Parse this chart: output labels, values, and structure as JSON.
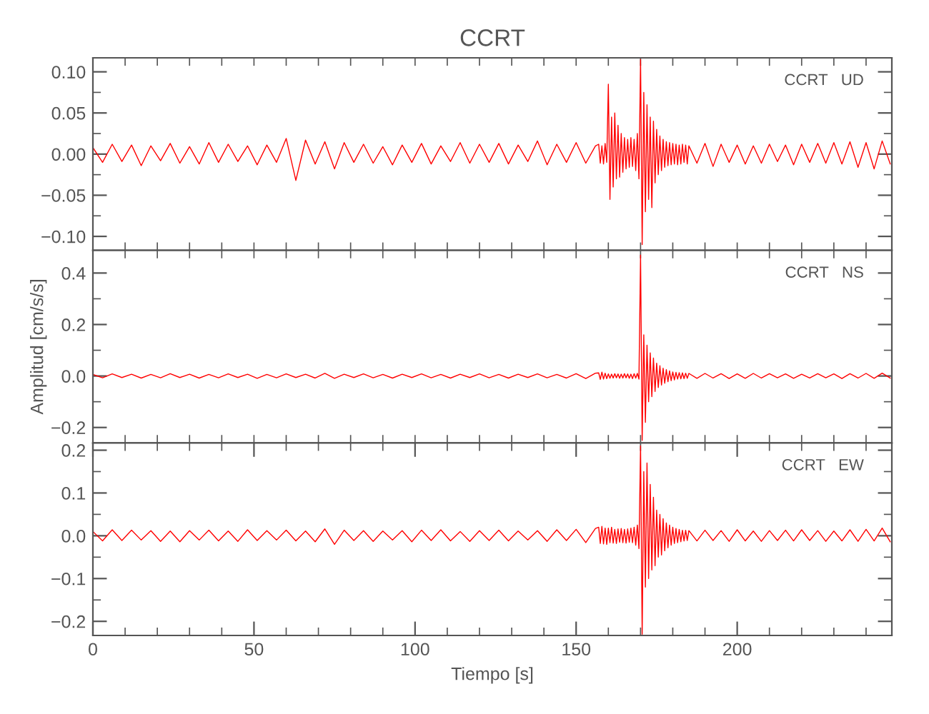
{
  "chart_data": [
    {
      "type": "line",
      "title": "CCRT",
      "annotations": [
        "CCRT   UD"
      ],
      "tick_labels": "y",
      "grid": false,
      "color": "#ff0000",
      "xlim": [
        0,
        248
      ],
      "ylim": [
        -0.117,
        0.117
      ],
      "xticks": [
        {
          "value": 0,
          "label": null
        },
        {
          "value": 10,
          "label": null
        },
        {
          "value": 20,
          "label": null
        },
        {
          "value": 30,
          "label": null
        },
        {
          "value": 40,
          "label": null
        },
        {
          "value": 50,
          "label": null
        },
        {
          "value": 60,
          "label": null
        },
        {
          "value": 70,
          "label": null
        },
        {
          "value": 80,
          "label": null
        },
        {
          "value": 90,
          "label": null
        },
        {
          "value": 100,
          "label": null
        },
        {
          "value": 110,
          "label": null
        },
        {
          "value": 120,
          "label": null
        },
        {
          "value": 130,
          "label": null
        },
        {
          "value": 140,
          "label": null
        },
        {
          "value": 150,
          "label": null
        },
        {
          "value": 160,
          "label": null
        },
        {
          "value": 170,
          "label": null
        },
        {
          "value": 180,
          "label": null
        },
        {
          "value": 190,
          "label": null
        },
        {
          "value": 200,
          "label": null
        },
        {
          "value": 210,
          "label": null
        },
        {
          "value": 220,
          "label": null
        },
        {
          "value": 230,
          "label": null
        },
        {
          "value": 240,
          "label": null
        }
      ],
      "yticks": [
        {
          "value": -0.1,
          "label": "−0.10"
        },
        {
          "value": -0.075,
          "label": null
        },
        {
          "value": -0.05,
          "label": "−0.05"
        },
        {
          "value": -0.025,
          "label": null
        },
        {
          "value": 0,
          "label": "0.00"
        },
        {
          "value": 0.025,
          "label": null
        },
        {
          "value": 0.05,
          "label": "0.05"
        },
        {
          "value": 0.075,
          "label": null
        },
        {
          "value": 0.1,
          "label": "0.10"
        }
      ],
      "x": [
        0,
        3,
        6,
        9,
        12,
        15,
        18,
        21,
        24,
        27,
        30,
        33,
        36,
        39,
        42,
        45,
        48,
        51,
        54,
        57,
        60,
        63,
        66,
        69,
        72,
        75,
        78,
        81,
        84,
        87,
        90,
        93,
        96,
        99,
        102,
        105,
        108,
        111,
        114,
        117,
        120,
        123,
        126,
        129,
        132,
        135,
        138,
        141,
        144,
        147,
        150,
        153,
        156,
        157,
        157.5,
        158,
        158.5,
        159,
        159.5,
        160,
        160.5,
        161,
        161.5,
        162,
        162.5,
        163,
        163.5,
        164,
        164.5,
        165,
        165.5,
        166,
        166.5,
        167,
        167.5,
        168,
        168.5,
        169,
        169.5,
        170,
        170.5,
        171,
        171.5,
        172,
        172.5,
        173,
        173.5,
        174,
        174.5,
        175,
        175.5,
        176,
        176.5,
        177,
        177.5,
        178,
        178.5,
        179,
        179.5,
        180,
        180.5,
        181,
        181.5,
        182,
        182.5,
        183,
        183.5,
        184,
        184.5,
        185,
        187.5,
        190,
        192.5,
        195,
        197.5,
        200,
        202.5,
        205,
        207.5,
        210,
        212.5,
        215,
        217.5,
        220,
        222.5,
        225,
        227.5,
        230,
        232.5,
        235,
        237.5,
        240,
        242.5,
        245,
        247.5
      ],
      "values": [
        0.008,
        -0.01,
        0.012,
        -0.009,
        0.011,
        -0.014,
        0.01,
        -0.008,
        0.013,
        -0.011,
        0.009,
        -0.012,
        0.014,
        -0.01,
        0.012,
        -0.009,
        0.01,
        -0.013,
        0.011,
        -0.01,
        0.019,
        -0.032,
        0.017,
        -0.012,
        0.015,
        -0.018,
        0.014,
        -0.01,
        0.012,
        -0.011,
        0.009,
        -0.013,
        0.011,
        -0.01,
        0.013,
        -0.012,
        0.01,
        -0.009,
        0.014,
        -0.011,
        0.012,
        -0.01,
        0.013,
        -0.012,
        0.011,
        -0.009,
        0.016,
        -0.013,
        0.012,
        -0.01,
        0.014,
        -0.011,
        0.01,
        0.012,
        -0.011,
        0.01,
        -0.012,
        0.013,
        -0.01,
        0.085,
        -0.055,
        0.045,
        -0.04,
        0.05,
        -0.03,
        0.035,
        -0.028,
        0.025,
        -0.022,
        0.02,
        -0.018,
        0.018,
        -0.016,
        0.02,
        -0.015,
        0.018,
        -0.02,
        0.025,
        -0.03,
        0.115,
        -0.11,
        0.075,
        -0.07,
        0.06,
        -0.055,
        0.045,
        -0.065,
        0.04,
        -0.035,
        0.03,
        -0.025,
        0.022,
        -0.02,
        0.018,
        -0.016,
        0.015,
        -0.014,
        0.014,
        -0.013,
        0.013,
        -0.012,
        0.012,
        -0.013,
        0.011,
        -0.012,
        0.012,
        -0.01,
        0.011,
        -0.012,
        0.01,
        -0.011,
        0.013,
        -0.015,
        0.012,
        -0.01,
        0.011,
        -0.012,
        0.01,
        -0.011,
        0.012,
        -0.009,
        0.011,
        -0.013,
        0.012,
        -0.01,
        0.013,
        -0.011,
        0.014,
        -0.012,
        0.015,
        -0.016,
        0.014,
        -0.018,
        0.016,
        -0.012
      ]
    },
    {
      "type": "line",
      "ylabel": "Amplitud [cm/s/s]",
      "annotations": [
        "CCRT   NS"
      ],
      "tick_labels": "y",
      "grid": false,
      "color": "#ff0000",
      "xlim": [
        0,
        248
      ],
      "ylim": [
        -0.26,
        0.488
      ],
      "xticks": [
        {
          "value": 0,
          "label": null
        },
        {
          "value": 10,
          "label": null
        },
        {
          "value": 20,
          "label": null
        },
        {
          "value": 30,
          "label": null
        },
        {
          "value": 40,
          "label": null
        },
        {
          "value": 50,
          "label": null
        },
        {
          "value": 60,
          "label": null
        },
        {
          "value": 70,
          "label": null
        },
        {
          "value": 80,
          "label": null
        },
        {
          "value": 90,
          "label": null
        },
        {
          "value": 100,
          "label": null
        },
        {
          "value": 110,
          "label": null
        },
        {
          "value": 120,
          "label": null
        },
        {
          "value": 130,
          "label": null
        },
        {
          "value": 140,
          "label": null
        },
        {
          "value": 150,
          "label": null
        },
        {
          "value": 160,
          "label": null
        },
        {
          "value": 170,
          "label": null
        },
        {
          "value": 180,
          "label": null
        },
        {
          "value": 190,
          "label": null
        },
        {
          "value": 200,
          "label": null
        },
        {
          "value": 210,
          "label": null
        },
        {
          "value": 220,
          "label": null
        },
        {
          "value": 230,
          "label": null
        },
        {
          "value": 240,
          "label": null
        }
      ],
      "yticks": [
        {
          "value": -0.2,
          "label": "−0.2"
        },
        {
          "value": -0.1,
          "label": null
        },
        {
          "value": 0,
          "label": "0.0"
        },
        {
          "value": 0.1,
          "label": null
        },
        {
          "value": 0.2,
          "label": "0.2"
        },
        {
          "value": 0.3,
          "label": null
        },
        {
          "value": 0.4,
          "label": "0.4"
        }
      ],
      "x": [
        0,
        3,
        6,
        9,
        12,
        15,
        18,
        21,
        24,
        27,
        30,
        33,
        36,
        39,
        42,
        45,
        48,
        51,
        54,
        57,
        60,
        63,
        66,
        69,
        72,
        75,
        78,
        81,
        84,
        87,
        90,
        93,
        96,
        99,
        102,
        105,
        108,
        111,
        114,
        117,
        120,
        123,
        126,
        129,
        132,
        135,
        138,
        141,
        144,
        147,
        150,
        153,
        156,
        157,
        157.5,
        158,
        158.5,
        159,
        159.5,
        160,
        160.5,
        161,
        161.5,
        162,
        162.5,
        163,
        163.5,
        164,
        164.5,
        165,
        165.5,
        166,
        166.5,
        167,
        167.5,
        168,
        168.5,
        169,
        169.5,
        170,
        170.5,
        171,
        171.5,
        172,
        172.5,
        173,
        173.5,
        174,
        174.5,
        175,
        175.5,
        176,
        176.5,
        177,
        177.5,
        178,
        178.5,
        179,
        179.5,
        180,
        180.5,
        181,
        181.5,
        182,
        182.5,
        183,
        183.5,
        184,
        184.5,
        185,
        187.5,
        190,
        192.5,
        195,
        197.5,
        200,
        202.5,
        205,
        207.5,
        210,
        212.5,
        215,
        217.5,
        220,
        222.5,
        225,
        227.5,
        230,
        232.5,
        235,
        237.5,
        240,
        242.5,
        245,
        247.5
      ],
      "values": [
        0.006,
        -0.007,
        0.008,
        -0.006,
        0.007,
        -0.008,
        0.006,
        -0.007,
        0.009,
        -0.006,
        0.007,
        -0.008,
        0.006,
        -0.007,
        0.008,
        -0.006,
        0.007,
        -0.009,
        0.006,
        -0.007,
        0.008,
        -0.006,
        0.007,
        -0.008,
        0.01,
        -0.009,
        0.007,
        -0.006,
        0.008,
        -0.007,
        0.006,
        -0.008,
        0.007,
        -0.006,
        0.008,
        -0.007,
        0.006,
        -0.008,
        0.007,
        -0.006,
        0.008,
        -0.007,
        0.006,
        -0.008,
        0.007,
        -0.006,
        0.008,
        -0.007,
        0.006,
        -0.008,
        0.009,
        -0.01,
        0.011,
        0.012,
        -0.013,
        0.015,
        -0.012,
        0.011,
        -0.01,
        0.008,
        -0.009,
        0.007,
        -0.008,
        0.009,
        -0.007,
        0.008,
        -0.009,
        0.007,
        -0.008,
        0.009,
        -0.007,
        0.008,
        -0.009,
        0.007,
        -0.01,
        0.009,
        -0.008,
        0.01,
        -0.012,
        0.47,
        -0.25,
        0.16,
        -0.18,
        0.12,
        -0.1,
        0.09,
        -0.08,
        0.07,
        -0.06,
        0.05,
        -0.045,
        0.04,
        -0.035,
        0.03,
        -0.028,
        0.025,
        -0.022,
        0.02,
        -0.018,
        0.016,
        -0.015,
        0.014,
        -0.012,
        0.013,
        -0.011,
        0.012,
        -0.01,
        0.011,
        -0.009,
        0.01,
        -0.009,
        0.01,
        -0.008,
        0.009,
        -0.01,
        0.008,
        -0.009,
        0.01,
        -0.008,
        0.009,
        -0.007,
        0.008,
        -0.009,
        0.007,
        -0.008,
        0.009,
        -0.007,
        0.008,
        -0.01,
        0.009,
        -0.008,
        0.01,
        -0.009,
        0.011,
        -0.008
      ]
    },
    {
      "type": "line",
      "xlabel": "Tiempo [s]",
      "annotations": [
        "CCRT   EW"
      ],
      "grid": false,
      "color": "#ff0000",
      "xlim": [
        0,
        248
      ],
      "ylim": [
        -0.233,
        0.217
      ],
      "xticks": [
        0,
        {
          "value": 10,
          "label": null
        },
        {
          "value": 20,
          "label": null
        },
        {
          "value": 30,
          "label": null
        },
        {
          "value": 40,
          "label": null
        },
        50,
        {
          "value": 60,
          "label": null
        },
        {
          "value": 70,
          "label": null
        },
        {
          "value": 80,
          "label": null
        },
        {
          "value": 90,
          "label": null
        },
        100,
        {
          "value": 110,
          "label": null
        },
        {
          "value": 120,
          "label": null
        },
        {
          "value": 130,
          "label": null
        },
        {
          "value": 140,
          "label": null
        },
        150,
        {
          "value": 160,
          "label": null
        },
        {
          "value": 170,
          "label": null
        },
        {
          "value": 180,
          "label": null
        },
        {
          "value": 190,
          "label": null
        },
        200,
        {
          "value": 210,
          "label": null
        },
        {
          "value": 220,
          "label": null
        },
        {
          "value": 230,
          "label": null
        },
        {
          "value": 240,
          "label": null
        }
      ],
      "yticks": [
        {
          "value": -0.2,
          "label": "−0.2"
        },
        {
          "value": -0.15,
          "label": null
        },
        {
          "value": -0.1,
          "label": "−0.1"
        },
        {
          "value": -0.05,
          "label": null
        },
        {
          "value": 0,
          "label": "0.0"
        },
        {
          "value": 0.05,
          "label": null
        },
        {
          "value": 0.1,
          "label": "0.1"
        },
        {
          "value": 0.15,
          "label": null
        },
        {
          "value": 0.2,
          "label": "0.2"
        }
      ],
      "x": [
        0,
        3,
        6,
        9,
        12,
        15,
        18,
        21,
        24,
        27,
        30,
        33,
        36,
        39,
        42,
        45,
        48,
        51,
        54,
        57,
        60,
        63,
        66,
        69,
        72,
        75,
        78,
        81,
        84,
        87,
        90,
        93,
        96,
        99,
        102,
        105,
        108,
        111,
        114,
        117,
        120,
        123,
        126,
        129,
        132,
        135,
        138,
        141,
        144,
        147,
        150,
        153,
        156,
        157,
        157.5,
        158,
        158.5,
        159,
        159.5,
        160,
        160.5,
        161,
        161.5,
        162,
        162.5,
        163,
        163.5,
        164,
        164.5,
        165,
        165.5,
        166,
        166.5,
        167,
        167.5,
        168,
        168.5,
        169,
        169.5,
        170,
        170.5,
        171,
        171.5,
        172,
        172.5,
        173,
        173.5,
        174,
        174.5,
        175,
        175.5,
        176,
        176.5,
        177,
        177.5,
        178,
        178.5,
        179,
        179.5,
        180,
        180.5,
        181,
        181.5,
        182,
        182.5,
        183,
        183.5,
        184,
        184.5,
        185,
        187.5,
        190,
        192.5,
        195,
        197.5,
        200,
        202.5,
        205,
        207.5,
        210,
        212.5,
        215,
        217.5,
        220,
        222.5,
        225,
        227.5,
        230,
        232.5,
        235,
        237.5,
        240,
        242.5,
        245,
        247.5
      ],
      "values": [
        0.01,
        -0.012,
        0.014,
        -0.011,
        0.013,
        -0.01,
        0.012,
        -0.013,
        0.011,
        -0.014,
        0.012,
        -0.01,
        0.013,
        -0.012,
        0.011,
        -0.013,
        0.014,
        -0.011,
        0.012,
        -0.01,
        0.013,
        -0.012,
        0.011,
        -0.014,
        0.016,
        -0.02,
        0.013,
        -0.011,
        0.012,
        -0.013,
        0.011,
        -0.01,
        0.012,
        -0.014,
        0.013,
        -0.011,
        0.014,
        -0.012,
        0.01,
        -0.013,
        0.012,
        -0.011,
        0.013,
        -0.012,
        0.011,
        -0.01,
        0.012,
        -0.013,
        0.014,
        -0.011,
        0.015,
        -0.016,
        0.017,
        0.02,
        -0.018,
        0.022,
        -0.019,
        0.018,
        -0.02,
        0.018,
        -0.016,
        0.02,
        -0.017,
        0.015,
        -0.018,
        0.016,
        -0.015,
        0.017,
        -0.016,
        0.015,
        -0.017,
        0.016,
        -0.015,
        0.018,
        -0.016,
        0.02,
        -0.022,
        0.025,
        -0.03,
        0.21,
        -0.23,
        0.15,
        -0.12,
        0.17,
        -0.1,
        0.12,
        -0.08,
        0.09,
        -0.07,
        0.06,
        -0.05,
        0.05,
        -0.045,
        0.04,
        -0.035,
        0.03,
        -0.028,
        0.025,
        -0.022,
        0.02,
        -0.018,
        0.017,
        -0.016,
        0.015,
        -0.014,
        0.013,
        -0.012,
        0.013,
        -0.011,
        0.012,
        -0.012,
        0.013,
        -0.011,
        0.012,
        -0.013,
        0.014,
        -0.012,
        0.011,
        -0.013,
        0.012,
        -0.011,
        0.013,
        -0.012,
        0.014,
        -0.011,
        0.012,
        -0.013,
        0.011,
        -0.012,
        0.014,
        -0.013,
        0.015,
        -0.012,
        0.018,
        -0.014
      ]
    }
  ]
}
